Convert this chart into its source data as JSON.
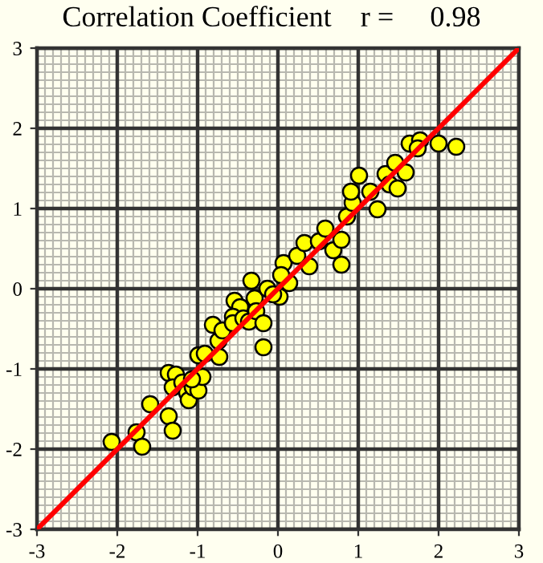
{
  "chart_data": {
    "type": "scatter",
    "title": "Correlation Coefficient    r =     0.98",
    "xlim": [
      -3,
      3
    ],
    "ylim": [
      -3,
      3
    ],
    "xticks": [
      -3,
      -2,
      -1,
      0,
      1,
      2,
      3
    ],
    "yticks": [
      -3,
      -2,
      -1,
      0,
      1,
      2,
      3
    ],
    "grid": true,
    "series": [
      {
        "marker": "circle",
        "color": "#ffff00",
        "x": [
          -2.07,
          -1.76,
          -1.69,
          -1.59,
          -1.36,
          -1.31,
          -1.36,
          -1.27,
          -1.31,
          -1.19,
          -1.13,
          -1.11,
          -1.06,
          -0.99,
          -0.94,
          -1.07,
          -0.99,
          -0.91,
          -0.73,
          -0.74,
          -0.81,
          -0.69,
          -0.54,
          -0.47,
          -0.56,
          -0.56,
          -0.43,
          -0.36,
          -0.29,
          -0.27,
          -0.18,
          -0.18,
          -0.33,
          -0.13,
          0.02,
          -0.06,
          0.07,
          0.14,
          0.24,
          0.33,
          0.39,
          0.51,
          0.59,
          0.69,
          0.79,
          0.79,
          0.86,
          0.93,
          0.91,
          1.01,
          1.15,
          1.24,
          1.34,
          1.39,
          1.46,
          1.49,
          1.59,
          1.64,
          1.77,
          2.0,
          2.22,
          1.74,
          0.04
        ],
        "values": [
          -1.91,
          -1.79,
          -1.97,
          -1.44,
          -1.59,
          -1.77,
          -1.05,
          -1.07,
          -1.23,
          -1.17,
          -1.3,
          -1.39,
          -1.23,
          -1.27,
          -1.1,
          -1.13,
          -0.83,
          -0.81,
          -0.85,
          -0.65,
          -0.45,
          -0.52,
          -0.15,
          -0.23,
          -0.35,
          -0.43,
          -0.37,
          -0.41,
          -0.12,
          -0.28,
          -0.43,
          -0.73,
          0.1,
          0.0,
          -0.1,
          -0.07,
          0.32,
          0.07,
          0.41,
          0.57,
          0.28,
          0.59,
          0.75,
          0.48,
          0.61,
          0.3,
          0.9,
          1.07,
          1.21,
          1.41,
          1.21,
          0.99,
          1.43,
          1.3,
          1.57,
          1.25,
          1.45,
          1.81,
          1.85,
          1.81,
          1.77,
          1.75,
          0.17
        ]
      },
      {
        "type": "line",
        "color": "#ff0000",
        "x": [
          -3,
          3
        ],
        "values": [
          -3,
          3
        ]
      }
    ]
  }
}
